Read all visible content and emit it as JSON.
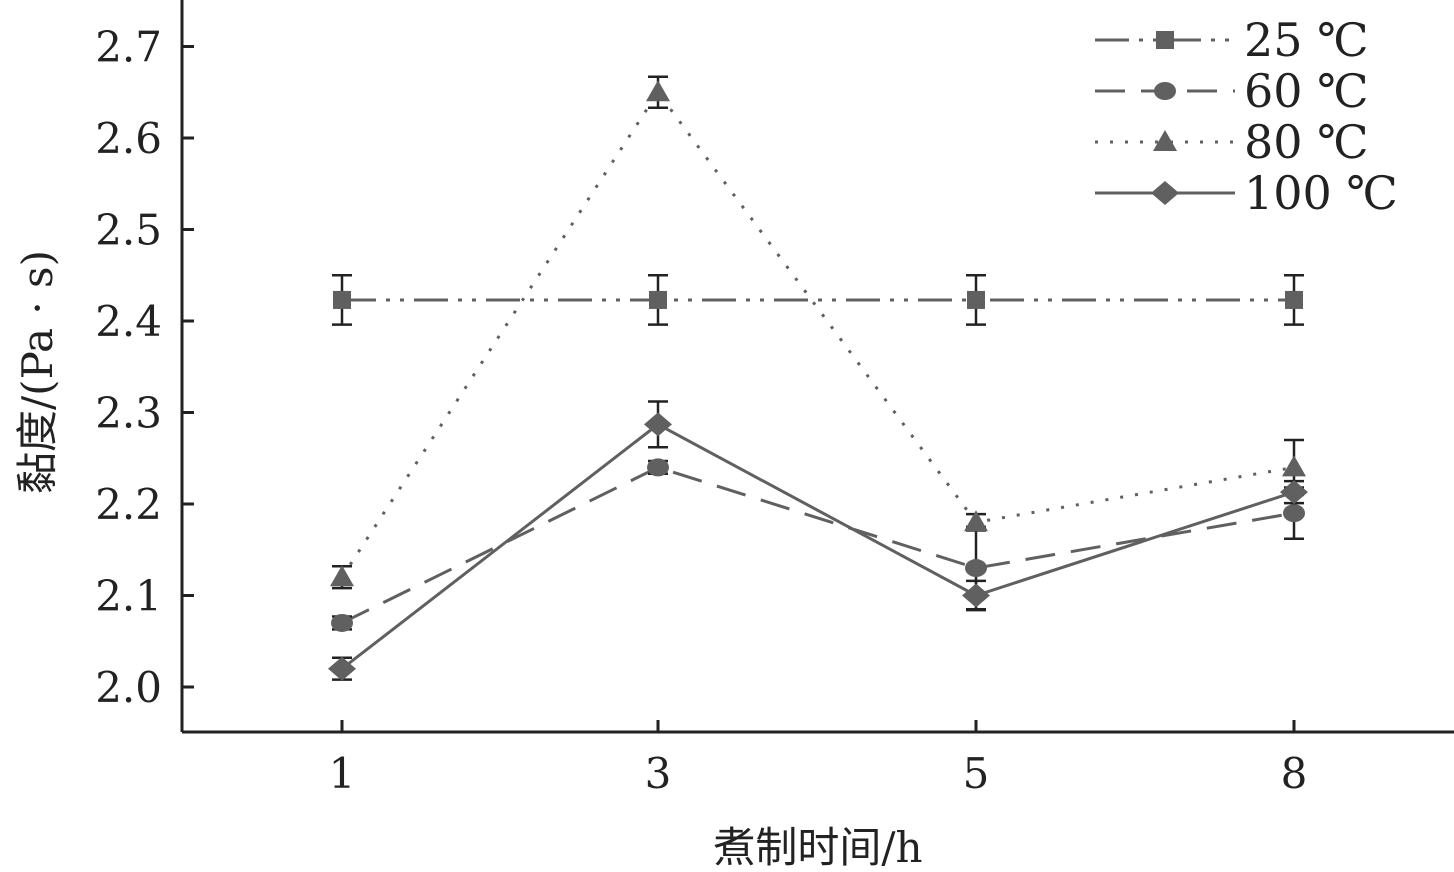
{
  "chart_data": {
    "type": "line",
    "xlabel": "煮制时间/h",
    "ylabel": "黏度/(Pa · s)",
    "categories": [
      "1",
      "3",
      "5",
      "8"
    ],
    "x": [
      1,
      3,
      5,
      8
    ],
    "y_ticks": [
      "2.0",
      "2.1",
      "2.2",
      "2.3",
      "2.4",
      "2.5",
      "2.6",
      "2.7"
    ],
    "ylim": [
      1.95,
      2.75
    ],
    "grid": false,
    "legend_position": "top-right",
    "series": [
      {
        "name": "25 ℃",
        "marker": "square",
        "dash": "dash-dot-dot",
        "color": "#606060",
        "values": [
          2.423,
          2.423,
          2.423,
          2.423
        ],
        "errors": [
          0.027,
          0.027,
          0.027,
          0.027
        ]
      },
      {
        "name": "60 ℃",
        "marker": "circle",
        "dash": "dashed",
        "color": "#606060",
        "values": [
          2.07,
          2.24,
          2.13,
          2.19
        ],
        "errors": [
          0.007,
          0.007,
          0.045,
          0.028
        ]
      },
      {
        "name": "80 ℃",
        "marker": "triangle",
        "dash": "dotted",
        "color": "#606060",
        "values": [
          2.12,
          2.65,
          2.18,
          2.24
        ],
        "errors": [
          0.012,
          0.017,
          0.009,
          0.03
        ]
      },
      {
        "name": "100 ℃",
        "marker": "diamond",
        "dash": "solid",
        "color": "#606060",
        "values": [
          2.02,
          2.287,
          2.1,
          2.213
        ],
        "errors": [
          0.012,
          0.025,
          0.016,
          0.012
        ]
      }
    ]
  }
}
